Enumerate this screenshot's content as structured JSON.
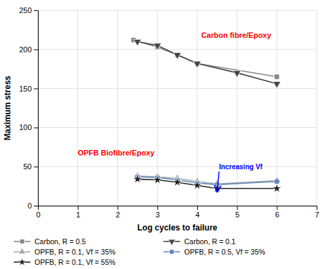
{
  "chart_data": {
    "type": "line",
    "xlabel": "Log cycles to failure",
    "ylabel": "Maximum stress",
    "xlim": [
      0,
      7
    ],
    "ylim": [
      0,
      250
    ],
    "xticks": [
      0,
      1,
      2,
      3,
      4,
      5,
      6,
      7
    ],
    "yticks": [
      0,
      50,
      100,
      150,
      200,
      250
    ],
    "grid": true,
    "legend": "bottom",
    "series": [
      {
        "name": "Carbon, R = 0.5",
        "color": "#888888",
        "marker": "square",
        "x": [
          2.4,
          3.0,
          3.5,
          4.0,
          6.0
        ],
        "values": [
          212,
          203,
          193,
          182,
          165
        ]
      },
      {
        "name": "Carbon, R = 0.1",
        "color": "#444444",
        "marker": "triangle-down",
        "x": [
          2.5,
          3.0,
          3.5,
          4.0,
          5.0,
          6.0
        ],
        "values": [
          210,
          205,
          193,
          182,
          170,
          156
        ]
      },
      {
        "name": "OPFB, R = 0.1, Vf = 35%",
        "color": "#aaaaaa",
        "marker": "triangle-up",
        "x": [
          2.5,
          3.0,
          3.5,
          4.0,
          4.5,
          6.0
        ],
        "values": [
          38,
          37,
          35,
          31,
          28,
          32
        ]
      },
      {
        "name": "OPFB, R = 0.5, Vf = 35%",
        "color": "#6688bb",
        "marker": "circle",
        "x": [
          2.5,
          3.0,
          3.5,
          4.0,
          4.5,
          6.0
        ],
        "values": [
          37,
          36,
          33,
          29,
          27,
          31
        ]
      },
      {
        "name": "OPFB, R = 0.1, Vf = 55%",
        "color": "#222222",
        "marker": "star",
        "x": [
          2.5,
          3.0,
          3.5,
          4.0,
          4.5,
          6.0
        ],
        "values": [
          34,
          33,
          30,
          26,
          22,
          22
        ]
      }
    ],
    "annotations": [
      {
        "text": "Carbon fibre/Epoxy",
        "x": 4.1,
        "y": 218,
        "color": "red"
      },
      {
        "text": "OPFB Biofibre/Epoxy",
        "x": 1.0,
        "y": 68,
        "color": "red"
      },
      {
        "text": "Increasing Vf",
        "x": 4.55,
        "y": 50,
        "arrow_x": 4.5,
        "arrow_y": 18,
        "color": "blue"
      }
    ]
  }
}
